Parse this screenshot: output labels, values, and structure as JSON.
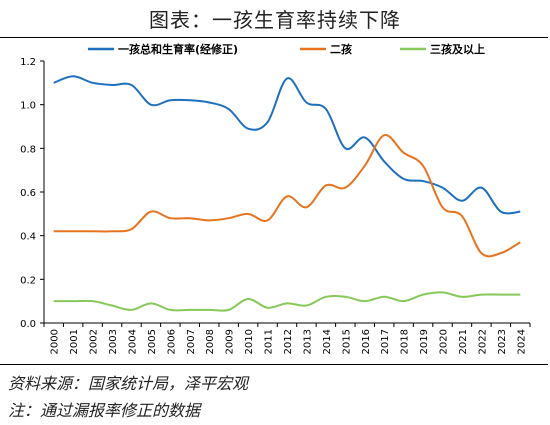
{
  "title": "图表：一孩生育率持续下降",
  "source": "资料来源：国家统计局，泽平宏观",
  "note": "注：通过漏报率修正的数据",
  "chart_data": {
    "type": "line",
    "x": [
      "2000",
      "2001",
      "2002",
      "2003",
      "2004",
      "2005",
      "2006",
      "2007",
      "2008",
      "2009",
      "2010",
      "2011",
      "2012",
      "2013",
      "2014",
      "2015",
      "2016",
      "2017",
      "2018",
      "2019",
      "2020",
      "2021",
      "2022",
      "2023",
      "2024"
    ],
    "ylim": [
      0,
      1.2
    ],
    "yticks": [
      "0.0",
      "0.2",
      "0.4",
      "0.6",
      "0.8",
      "1.0",
      "1.2"
    ],
    "legend_position": "top",
    "grid": false,
    "series": [
      {
        "name": "一孩总和生育率(经修正)",
        "color": "#1f6fbf",
        "values": [
          1.1,
          1.13,
          1.1,
          1.09,
          1.09,
          1.0,
          1.02,
          1.02,
          1.01,
          0.98,
          0.89,
          0.92,
          1.12,
          1.01,
          0.98,
          0.8,
          0.85,
          0.74,
          0.66,
          0.65,
          0.62,
          0.56,
          0.62,
          0.51,
          0.51
        ]
      },
      {
        "name": "二孩",
        "color": "#e8731f",
        "values": [
          0.42,
          0.42,
          0.42,
          0.42,
          0.43,
          0.51,
          0.48,
          0.48,
          0.47,
          0.48,
          0.5,
          0.47,
          0.58,
          0.53,
          0.63,
          0.62,
          0.72,
          0.86,
          0.78,
          0.72,
          0.53,
          0.49,
          0.32,
          0.32,
          0.37
        ]
      },
      {
        "name": "三孩及以上",
        "color": "#86c85a",
        "values": [
          0.1,
          0.1,
          0.1,
          0.08,
          0.06,
          0.09,
          0.06,
          0.06,
          0.06,
          0.06,
          0.11,
          0.07,
          0.09,
          0.08,
          0.12,
          0.12,
          0.1,
          0.12,
          0.1,
          0.13,
          0.14,
          0.12,
          0.13,
          0.13,
          0.13
        ]
      }
    ]
  }
}
